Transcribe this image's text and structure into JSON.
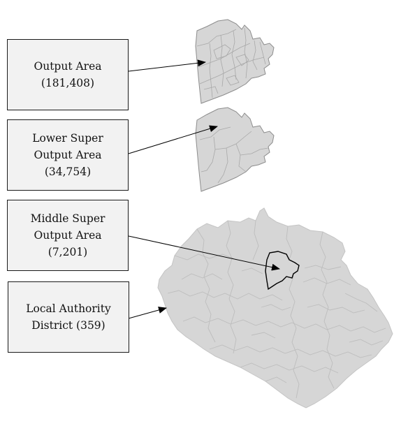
{
  "levels": [
    {
      "lines": [
        "Output Area",
        "(181,408)"
      ]
    },
    {
      "lines": [
        "Lower Super",
        "Output Area",
        "(34,754)"
      ]
    },
    {
      "lines": [
        "Middle Super",
        "Output Area",
        "(7,201)"
      ]
    },
    {
      "lines": [
        "Local Authority",
        "District (359)"
      ]
    }
  ],
  "colors": {
    "box_fill": "#f2f2f2",
    "box_border": "#1a1a1a",
    "map_fill": "#d6d6d6",
    "map_inner_lines": "#bdbdbd",
    "map_outline": "#8c8c8c",
    "highlight_outline": "#000000",
    "arrow": "#000000"
  }
}
